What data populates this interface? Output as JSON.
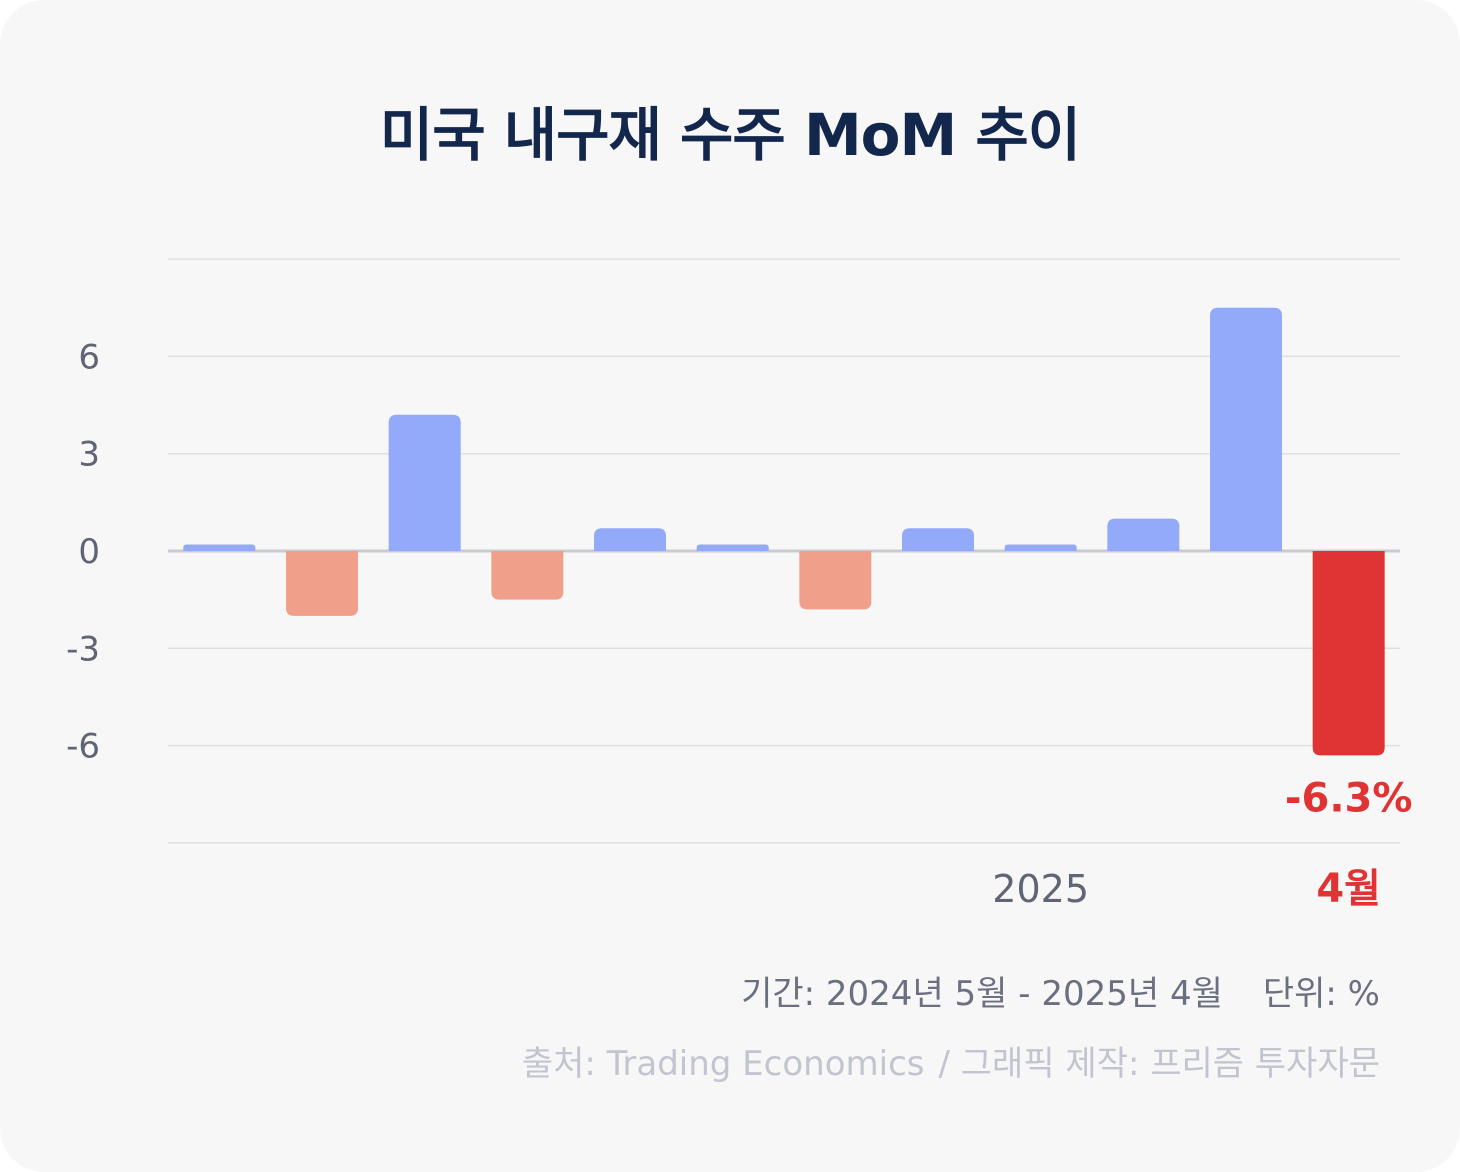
{
  "title": "미국 내구재 수주 MoM 추이",
  "footer": {
    "period": "기간: 2024년 5월 - 2025년 4월",
    "unit": "단위: %",
    "source": "출처: Trading Economics",
    "credit": "/ 그래픽 제작: 프리즘 투자자문"
  },
  "colors": {
    "positive": "#93a9fa",
    "negative": "#f0a08a",
    "highlight": "#e03333",
    "title": "#13264b"
  },
  "chart_data": {
    "type": "bar",
    "title": "미국 내구재 수주 MoM 추이",
    "xlabel": "",
    "ylabel": "",
    "ylim": [
      -9,
      9
    ],
    "yticks": [
      6,
      3,
      0,
      -3,
      -6
    ],
    "ytick_labels": [
      "6",
      "3",
      "0",
      "-3",
      "-6"
    ],
    "grid": true,
    "legend": "none",
    "values": [
      0.2,
      -2.0,
      4.2,
      -1.5,
      0.7,
      0.2,
      -1.8,
      0.7,
      0.2,
      1.0,
      7.5,
      -6.3
    ],
    "x_labels": [
      "",
      "",
      "",
      "",
      "",
      "",
      "",
      "",
      "2025",
      "",
      "",
      "4월"
    ],
    "highlight_index": 11,
    "highlight_value_label": "-6.3%"
  }
}
